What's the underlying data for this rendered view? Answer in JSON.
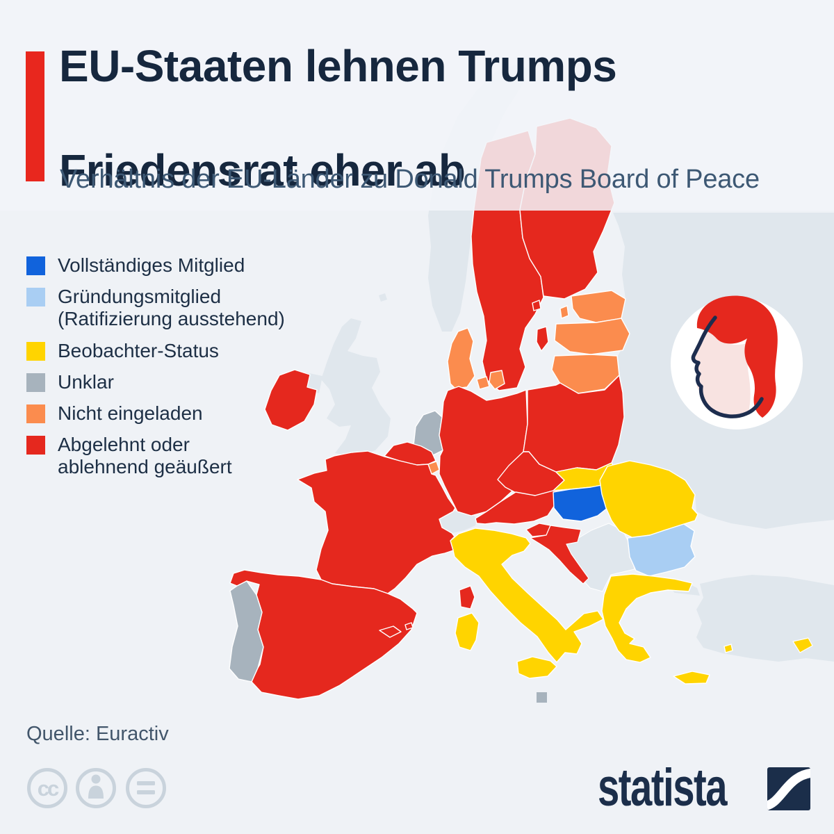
{
  "header": {
    "title_line1": "EU-Staaten lehnen Trumps",
    "title_line2": "Friedensrat eher ab",
    "subtitle": "Verhältnis der EU-Länder zu Donald Trumps Board of Peace",
    "accent_color": "#e8271e",
    "title_color": "#16273e"
  },
  "legend": {
    "items": [
      {
        "status": "full_member",
        "label": "Vollständiges Mitglied",
        "color": "#1163dc"
      },
      {
        "status": "founding_member_pending",
        "label": "Gründungsmitglied\n(Ratifizierung ausstehend)",
        "color": "#a9cef3"
      },
      {
        "status": "observer",
        "label": "Beobachter-Status",
        "color": "#ffd400"
      },
      {
        "status": "unclear",
        "label": "Unklar",
        "color": "#a7b3bd"
      },
      {
        "status": "not_invited",
        "label": "Nicht eingeladen",
        "color": "#fb8c4e"
      },
      {
        "status": "rejected",
        "label": "Abgelehnt oder\nablehnend geäußert",
        "color": "#e5281e"
      }
    ]
  },
  "map": {
    "non_eu_color": "#e0e7ed",
    "sea_color": "#eff2f6",
    "fade_color": "#f2f5f9",
    "countries": [
      {
        "name": "Hungary",
        "status": "full_member"
      },
      {
        "name": "Bulgaria",
        "status": "founding_member_pending"
      },
      {
        "name": "Italy",
        "status": "observer"
      },
      {
        "name": "Slovakia",
        "status": "observer"
      },
      {
        "name": "Romania",
        "status": "observer"
      },
      {
        "name": "Greece",
        "status": "observer"
      },
      {
        "name": "Cyprus",
        "status": "observer"
      },
      {
        "name": "Netherlands",
        "status": "unclear"
      },
      {
        "name": "Portugal",
        "status": "unclear"
      },
      {
        "name": "Malta",
        "status": "unclear"
      },
      {
        "name": "Denmark",
        "status": "not_invited"
      },
      {
        "name": "Estonia",
        "status": "not_invited"
      },
      {
        "name": "Latvia",
        "status": "not_invited"
      },
      {
        "name": "Lithuania",
        "status": "not_invited"
      },
      {
        "name": "Luxembourg",
        "status": "not_invited"
      },
      {
        "name": "Sweden",
        "status": "rejected"
      },
      {
        "name": "Finland",
        "status": "rejected"
      },
      {
        "name": "Ireland",
        "status": "rejected"
      },
      {
        "name": "France",
        "status": "rejected"
      },
      {
        "name": "Belgium",
        "status": "rejected"
      },
      {
        "name": "Germany",
        "status": "rejected"
      },
      {
        "name": "Poland",
        "status": "rejected"
      },
      {
        "name": "Czechia",
        "status": "rejected"
      },
      {
        "name": "Austria",
        "status": "rejected"
      },
      {
        "name": "Spain",
        "status": "rejected"
      },
      {
        "name": "Slovenia",
        "status": "rejected"
      },
      {
        "name": "Croatia",
        "status": "rejected"
      },
      {
        "name": "United Kingdom",
        "status": "non_eu"
      },
      {
        "name": "Norway",
        "status": "non_eu"
      },
      {
        "name": "Switzerland",
        "status": "non_eu"
      },
      {
        "name": "Eastern Europe non-EU",
        "status": "non_eu"
      },
      {
        "name": "Western Balkans",
        "status": "non_eu"
      },
      {
        "name": "Turkey",
        "status": "non_eu"
      },
      {
        "name": "Kaliningrad",
        "status": "non_eu"
      }
    ]
  },
  "trump_icon": {
    "hair_color": "#e5281e",
    "face_color": "#f8e3e1",
    "outline_color": "#1d2d4e",
    "badge_color": "#ffffff"
  },
  "footer": {
    "source_label": "Quelle: Euractiv",
    "brand": "statista",
    "brand_color": "#1b2e4a",
    "license_icon_color": "#c9d3dc"
  },
  "chart_data": {
    "type": "table",
    "title": "EU-Staaten lehnen Trumps Friedensrat eher ab",
    "subtitle": "Verhältnis der EU-Länder zu Donald Trumps Board of Peace",
    "series": [
      {
        "name": "Vollständiges Mitglied",
        "values": [
          "Ungarn"
        ]
      },
      {
        "name": "Gründungsmitglied (Ratifizierung ausstehend)",
        "values": [
          "Bulgarien"
        ]
      },
      {
        "name": "Beobachter-Status",
        "values": [
          "Italien",
          "Slowakei",
          "Rumänien",
          "Griechenland",
          "Zypern"
        ]
      },
      {
        "name": "Unklar",
        "values": [
          "Niederlande",
          "Portugal",
          "Malta"
        ]
      },
      {
        "name": "Nicht eingeladen",
        "values": [
          "Dänemark",
          "Estland",
          "Lettland",
          "Litauen",
          "Luxemburg"
        ]
      },
      {
        "name": "Abgelehnt oder ablehnend geäußert",
        "values": [
          "Schweden",
          "Finnland",
          "Irland",
          "Frankreich",
          "Belgien",
          "Deutschland",
          "Polen",
          "Tschechien",
          "Österreich",
          "Spanien",
          "Slowenien",
          "Kroatien"
        ]
      }
    ],
    "source": "Euractiv"
  }
}
